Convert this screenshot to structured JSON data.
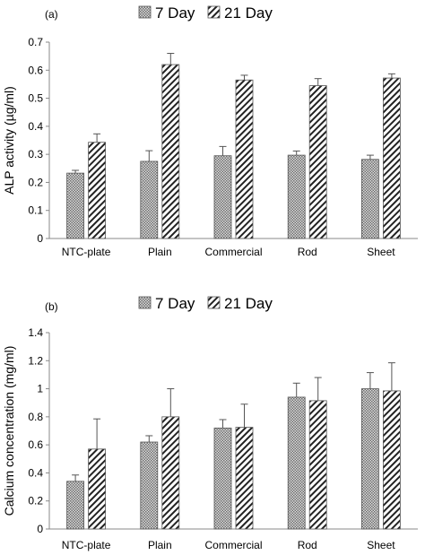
{
  "chart_data": [
    {
      "type": "bar",
      "panel": "(a)",
      "title": "",
      "xlabel": "",
      "ylabel": "ALP activity (µg/ml)",
      "ylim": [
        0,
        0.7
      ],
      "ystep": 0.1,
      "categories": [
        "NTC-plate",
        "Plain",
        "Commercial",
        "Rod",
        "Sheet"
      ],
      "legend_position": "top-center",
      "series": [
        {
          "name": "7 Day",
          "pattern": "checker",
          "values": [
            0.233,
            0.275,
            0.295,
            0.297,
            0.282
          ],
          "errors": [
            0.01,
            0.038,
            0.033,
            0.015,
            0.015
          ]
        },
        {
          "name": "21 Day",
          "pattern": "hatch",
          "values": [
            0.343,
            0.62,
            0.565,
            0.545,
            0.572
          ],
          "errors": [
            0.03,
            0.04,
            0.017,
            0.025,
            0.015
          ]
        }
      ]
    },
    {
      "type": "bar",
      "panel": "(b)",
      "title": "",
      "xlabel": "",
      "ylabel": "Calcium concentration (mg/ml)",
      "ylim": [
        0,
        1.4
      ],
      "ystep": 0.2,
      "categories": [
        "NTC-plate",
        "Plain",
        "Commercial",
        "Rod",
        "Sheet"
      ],
      "legend_position": "top-center",
      "series": [
        {
          "name": "7 Day",
          "pattern": "checker",
          "values": [
            0.34,
            0.62,
            0.72,
            0.94,
            1.0
          ],
          "errors": [
            0.045,
            0.045,
            0.06,
            0.1,
            0.115
          ]
        },
        {
          "name": "21 Day",
          "pattern": "hatch",
          "values": [
            0.57,
            0.8,
            0.725,
            0.915,
            0.985
          ],
          "errors": [
            0.215,
            0.2,
            0.165,
            0.165,
            0.2
          ]
        }
      ]
    }
  ]
}
